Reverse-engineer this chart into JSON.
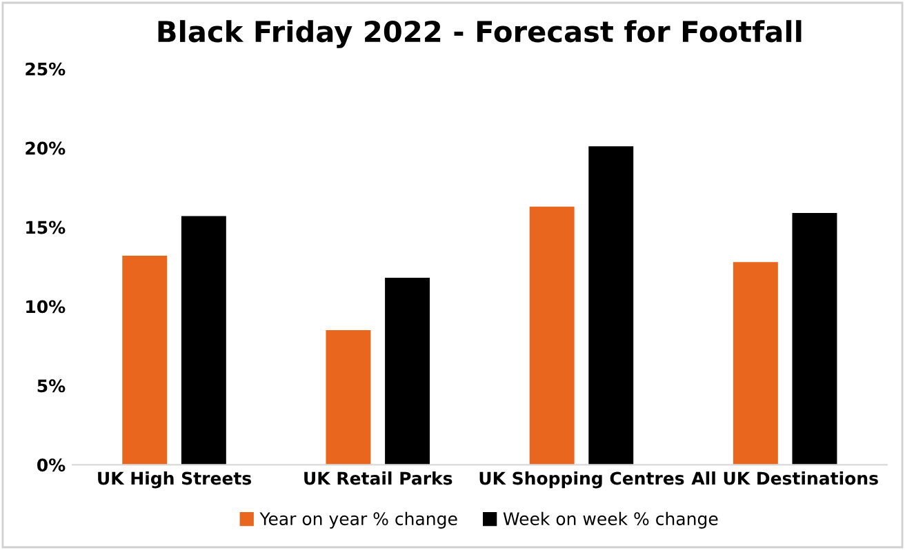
{
  "chart_data": {
    "type": "bar",
    "title": "Black Friday 2022 - Forecast for Footfall",
    "categories": [
      "UK High Streets",
      "UK Retail Parks",
      "UK Shopping Centres",
      "All UK Destinations"
    ],
    "series": [
      {
        "name": "Year on year % change",
        "color": "#e8661e",
        "values": [
          13.2,
          8.5,
          16.3,
          12.8
        ]
      },
      {
        "name": "Week on week % change",
        "color": "#000000",
        "values": [
          15.7,
          11.8,
          20.1,
          15.9
        ]
      }
    ],
    "ylim": [
      0,
      25
    ],
    "yticks": [
      {
        "value": 0,
        "label": "0%"
      },
      {
        "value": 5,
        "label": "5%"
      },
      {
        "value": 10,
        "label": "10%"
      },
      {
        "value": 15,
        "label": "15%"
      },
      {
        "value": 20,
        "label": "20%"
      },
      {
        "value": 25,
        "label": "25%"
      }
    ],
    "grid": false,
    "legend": "bottom"
  }
}
